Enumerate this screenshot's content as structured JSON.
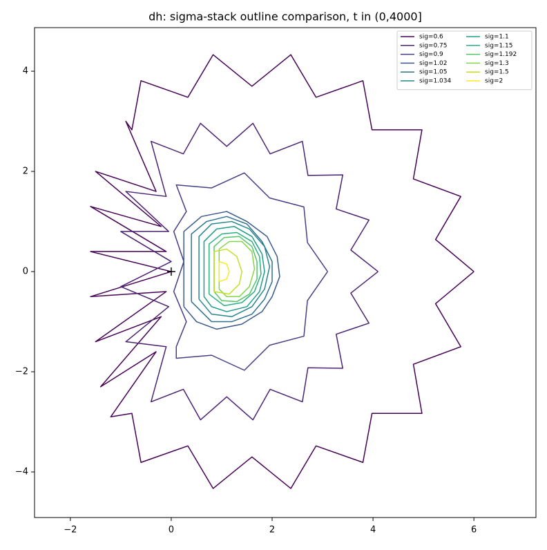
{
  "chart_data": {
    "type": "line",
    "title": "dh: sigma-stack outline comparison, t in (0,4000]",
    "xlim": [
      -2.71,
      7.23
    ],
    "ylim": [
      -4.91,
      4.87
    ],
    "xticks": [
      {
        "value": -2,
        "label": "−2"
      },
      0,
      2,
      4,
      6
    ],
    "yticks": [
      {
        "value": -4,
        "label": "−4"
      },
      {
        "value": -2,
        "label": "−2"
      },
      0,
      2,
      4
    ],
    "legend": "upper right",
    "legend_columns": 2,
    "markers": [
      {
        "x": 0,
        "y": 0,
        "symbol": "+",
        "color": "#000000"
      }
    ],
    "series": [
      {
        "name": "sig=0.6",
        "color": "#440154",
        "x": [
          6.0,
          5.24,
          5.74,
          4.8,
          4.97,
          3.98,
          3.8,
          2.87,
          2.37,
          1.6,
          0.83,
          0.33,
          -0.6,
          -0.78,
          -0.9,
          -0.3,
          -1.5,
          -0.2,
          -1.6,
          -0.1,
          -1.6,
          0,
          -1.6,
          -0.1,
          -1.5,
          -0.2,
          -1.4,
          -0.3,
          -1.2,
          -0.78,
          -0.6,
          0.33,
          0.83,
          1.6,
          2.37,
          2.87,
          3.8,
          3.98,
          4.97,
          4.8,
          5.74,
          5.24,
          6.0
        ],
        "y": [
          0,
          0.64,
          1.5,
          1.85,
          2.83,
          2.83,
          3.81,
          3.48,
          4.33,
          3.7,
          4.33,
          3.48,
          3.81,
          2.83,
          3.0,
          1.6,
          2.0,
          0.9,
          1.3,
          0.4,
          0.4,
          0,
          -0.5,
          -0.4,
          -1.4,
          -0.9,
          -2.3,
          -1.6,
          -2.9,
          -2.83,
          -3.81,
          -3.48,
          -4.33,
          -3.7,
          -4.33,
          -3.48,
          -3.81,
          -2.83,
          -2.83,
          -1.85,
          -1.5,
          -0.64,
          0
        ]
      },
      {
        "name": "sig=0.75",
        "color": "#482173",
        "x": [
          4.1,
          3.56,
          3.92,
          3.27,
          3.4,
          2.71,
          2.6,
          1.96,
          1.62,
          1.1,
          0.58,
          0.24,
          -0.4,
          -0.1,
          -0.9,
          -0.05,
          -1.0,
          0,
          -1.0,
          -0.05,
          -0.9,
          -0.1,
          -0.4,
          0.24,
          0.58,
          1.1,
          1.62,
          1.96,
          2.6,
          2.71,
          3.4,
          3.27,
          3.92,
          3.56,
          4.1
        ],
        "y": [
          0,
          0.43,
          1.03,
          1.25,
          1.93,
          1.92,
          2.6,
          2.35,
          2.96,
          2.5,
          2.96,
          2.35,
          2.6,
          1.5,
          1.6,
          0.8,
          0.8,
          0.2,
          -0.3,
          -0.7,
          -1.4,
          -1.5,
          -2.6,
          -2.35,
          -2.96,
          -2.5,
          -2.96,
          -2.35,
          -2.6,
          -1.92,
          -1.93,
          -1.25,
          -1.03,
          -0.43,
          0
        ]
      },
      {
        "name": "sig=0.9",
        "color": "#433e85",
        "x": [
          3.1,
          2.7,
          2.63,
          1.95,
          1.45,
          0.8,
          0.1,
          0.3,
          0.05,
          0.25,
          0.05,
          0.3,
          0.1,
          0.1,
          0.8,
          1.45,
          1.95,
          2.63,
          2.7,
          3.1
        ],
        "y": [
          0,
          0.58,
          1.29,
          1.47,
          1.97,
          1.67,
          1.73,
          1.2,
          0.8,
          0.2,
          -0.4,
          -1.0,
          -1.5,
          -1.73,
          -1.67,
          -1.97,
          -1.47,
          -1.29,
          -0.58,
          0
        ]
      },
      {
        "name": "sig=1.02",
        "color": "#38588c",
        "x": [
          0.25,
          0.25,
          0.6,
          1.1,
          1.5,
          1.9,
          2.1,
          2.15,
          2.0,
          1.8,
          1.4,
          0.9,
          0.5,
          0.25
        ],
        "y": [
          -0.7,
          0.8,
          1.1,
          1.2,
          1.0,
          0.7,
          0.3,
          -0.1,
          -0.5,
          -0.8,
          -1.05,
          -1.15,
          -1.0,
          -0.7
        ]
      },
      {
        "name": "sig=1.05",
        "color": "#2d708e",
        "x": [
          0.4,
          0.4,
          0.7,
          1.1,
          1.5,
          1.8,
          2.0,
          2.0,
          1.85,
          1.6,
          1.2,
          0.8,
          0.4
        ],
        "y": [
          -0.6,
          0.75,
          1.0,
          1.1,
          0.95,
          0.6,
          0.2,
          -0.2,
          -0.55,
          -0.85,
          -1.0,
          -1.0,
          -0.6
        ]
      },
      {
        "name": "sig=1.034",
        "color": "#25858e",
        "x": [
          0.55,
          0.55,
          0.8,
          1.2,
          1.55,
          1.85,
          1.95,
          1.85,
          1.6,
          1.2,
          0.8,
          0.55
        ],
        "y": [
          -0.55,
          0.7,
          0.95,
          1.0,
          0.85,
          0.5,
          0.1,
          -0.35,
          -0.7,
          -0.9,
          -0.85,
          -0.55
        ]
      },
      {
        "name": "sig=1.1",
        "color": "#1e9b8a",
        "x": [
          0.65,
          0.65,
          0.9,
          1.25,
          1.6,
          1.8,
          1.85,
          1.75,
          1.5,
          1.1,
          0.8,
          0.65
        ],
        "y": [
          -0.5,
          0.6,
          0.85,
          0.9,
          0.7,
          0.35,
          0,
          -0.4,
          -0.7,
          -0.8,
          -0.7,
          -0.5
        ]
      },
      {
        "name": "sig=1.15",
        "color": "#2ab07f",
        "x": [
          0.75,
          0.75,
          1.0,
          1.3,
          1.6,
          1.75,
          1.78,
          1.65,
          1.4,
          1.05,
          0.75
        ],
        "y": [
          -0.45,
          0.55,
          0.75,
          0.78,
          0.6,
          0.3,
          -0.05,
          -0.4,
          -0.62,
          -0.68,
          -0.45
        ]
      },
      {
        "name": "sig=1.192",
        "color": "#52c569",
        "x": [
          0.85,
          0.85,
          1.05,
          1.35,
          1.6,
          1.7,
          1.7,
          1.55,
          1.3,
          1.0,
          0.85
        ],
        "y": [
          -0.4,
          0.5,
          0.68,
          0.7,
          0.5,
          0.2,
          -0.15,
          -0.45,
          -0.6,
          -0.58,
          -0.4
        ]
      },
      {
        "name": "sig=1.3",
        "color": "#86d549",
        "x": [
          0.95,
          0.95,
          1.15,
          1.4,
          1.6,
          1.65,
          1.55,
          1.35,
          1.1,
          0.95
        ],
        "y": [
          -0.35,
          0.45,
          0.6,
          0.6,
          0.4,
          0.05,
          -0.3,
          -0.5,
          -0.5,
          -0.35
        ]
      },
      {
        "name": "sig=1.5",
        "color": "#c2df23",
        "x": [
          0.85,
          0.85,
          1.1,
          1.3,
          1.4,
          1.35,
          1.15,
          0.85
        ],
        "y": [
          -0.4,
          0.4,
          0.45,
          0.3,
          0.0,
          -0.25,
          -0.45,
          -0.4
        ]
      },
      {
        "name": "sig=2",
        "color": "#fde725",
        "x": [
          0.95,
          0.95,
          1.1,
          1.15,
          1.1,
          0.95
        ],
        "y": [
          -0.2,
          0.2,
          0.15,
          0,
          -0.15,
          -0.2
        ]
      }
    ]
  }
}
